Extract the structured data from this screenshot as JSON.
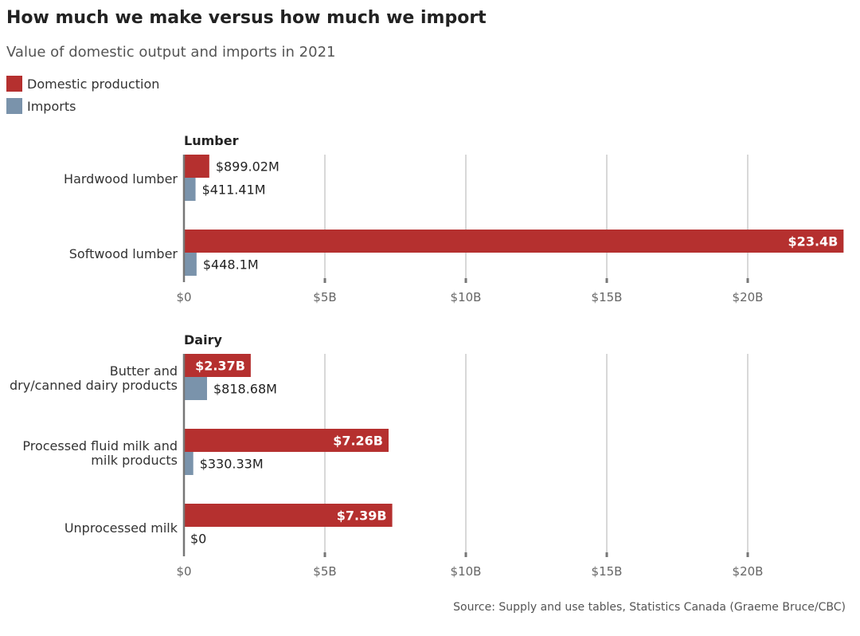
{
  "title": "How much we make versus how much we import",
  "subtitle": "Value of domestic output and imports in 2021",
  "source": "Source: Supply and use tables, Statistics Canada (Graeme Bruce/CBC)",
  "colors": {
    "domestic": "#b5302f",
    "imports": "#7a93ab"
  },
  "legend": [
    {
      "name": "Domestic production",
      "color": "#b5302f"
    },
    {
      "name": "Imports",
      "color": "#7a93ab"
    }
  ],
  "chart_data": [
    {
      "type": "bar",
      "orientation": "horizontal",
      "panel_title": "Lumber",
      "categories": [
        "Hardwood lumber",
        "Softwood lumber"
      ],
      "series": [
        {
          "name": "Domestic production",
          "values": [
            0.89902,
            23.4
          ],
          "labels": [
            "$899.02M",
            "$23.4B"
          ]
        },
        {
          "name": "Imports",
          "values": [
            0.41141,
            0.4481
          ],
          "labels": [
            "$411.41M",
            "$448.1M"
          ]
        }
      ],
      "xlim": [
        0,
        23.4
      ],
      "ticks": [
        0,
        5,
        10,
        15,
        20
      ],
      "tick_labels": [
        "$0",
        "$5B",
        "$10B",
        "$15B",
        "$20B"
      ],
      "grid": true
    },
    {
      "type": "bar",
      "orientation": "horizontal",
      "panel_title": "Dairy",
      "categories": [
        "Butter and dry/canned dairy products",
        "Processed fluid milk and milk products",
        "Unprocessed milk"
      ],
      "category_lines": [
        [
          "Butter and",
          "dry/canned dairy products"
        ],
        [
          "Processed fluid milk and",
          "milk products"
        ],
        [
          "Unprocessed milk"
        ]
      ],
      "series": [
        {
          "name": "Domestic production",
          "values": [
            2.37,
            7.26,
            7.39
          ],
          "labels": [
            "$2.37B",
            "$7.26B",
            "$7.39B"
          ]
        },
        {
          "name": "Imports",
          "values": [
            0.81868,
            0.33033,
            0
          ],
          "labels": [
            "$818.68M",
            "$330.33M",
            "$0"
          ]
        }
      ],
      "xlim": [
        0,
        23.4
      ],
      "ticks": [
        0,
        5,
        10,
        15,
        20
      ],
      "tick_labels": [
        "$0",
        "$5B",
        "$10B",
        "$15B",
        "$20B"
      ],
      "grid": true
    }
  ]
}
